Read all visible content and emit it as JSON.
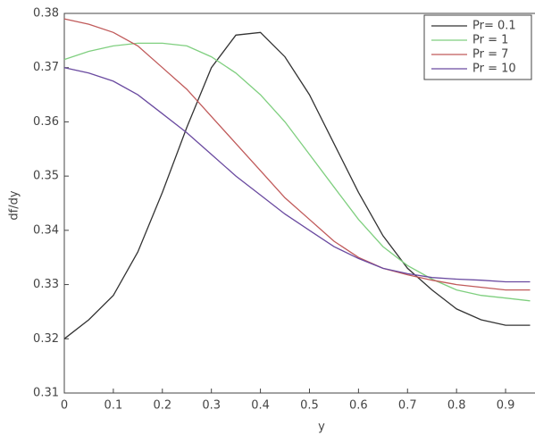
{
  "chart_data": {
    "type": "line",
    "x_label": "y",
    "y_label": "df/dy",
    "x": [
      0,
      0.05,
      0.1,
      0.15,
      0.2,
      0.25,
      0.3,
      0.35,
      0.4,
      0.45,
      0.5,
      0.55,
      0.6,
      0.65,
      0.7,
      0.75,
      0.8,
      0.85,
      0.9,
      0.95
    ],
    "series": [
      {
        "name": "Pr= 0.1",
        "color": "#333333",
        "values": [
          0.32,
          0.3235,
          0.328,
          0.336,
          0.347,
          0.359,
          0.37,
          0.376,
          0.3765,
          0.372,
          0.365,
          0.356,
          0.347,
          0.339,
          0.333,
          0.329,
          0.3255,
          0.3235,
          0.3225,
          0.3225
        ]
      },
      {
        "name": "Pr = 1",
        "color": "#7fcf7f",
        "values": [
          0.3715,
          0.373,
          0.374,
          0.3745,
          0.3745,
          0.374,
          0.372,
          0.369,
          0.365,
          0.36,
          0.354,
          0.348,
          0.342,
          0.337,
          0.3335,
          0.331,
          0.329,
          0.328,
          0.3275,
          0.327
        ]
      },
      {
        "name": "Pr = 7",
        "color": "#c05a5a",
        "values": [
          0.379,
          0.378,
          0.3765,
          0.374,
          0.37,
          0.366,
          0.361,
          0.356,
          0.351,
          0.346,
          0.342,
          0.338,
          0.335,
          0.333,
          0.3318,
          0.3308,
          0.33,
          0.3295,
          0.329,
          0.329
        ]
      },
      {
        "name": "Pr = 10",
        "color": "#6a4aa0",
        "values": [
          0.37,
          0.369,
          0.3675,
          0.365,
          0.3615,
          0.358,
          0.354,
          0.35,
          0.3465,
          0.343,
          0.34,
          0.337,
          0.3348,
          0.333,
          0.332,
          0.3313,
          0.331,
          0.3308,
          0.3305,
          0.3305
        ]
      }
    ],
    "xlim": [
      0,
      0.96
    ],
    "ylim": [
      0.31,
      0.38
    ],
    "xticks": [
      0,
      0.1,
      0.2,
      0.3,
      0.4,
      0.5,
      0.6,
      0.7,
      0.8,
      0.9
    ],
    "yticks": [
      0.31,
      0.32,
      0.33,
      0.34,
      0.35,
      0.36,
      0.37,
      0.38
    ],
    "grid": false,
    "legend": "upper right"
  }
}
